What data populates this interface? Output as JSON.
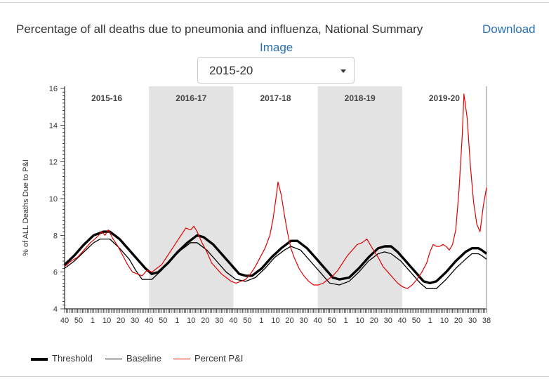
{
  "header": {
    "title": "Percentage of all deaths due to pneumonia and influenza, National Summary",
    "download_label": "Download",
    "download_label_2": "Image"
  },
  "season_select": {
    "value": "2015-20"
  },
  "chart_data": {
    "type": "line",
    "title": "",
    "xlabel": "",
    "ylabel": "% of ALL Deaths Due to P&I",
    "ylim": [
      4,
      16
    ],
    "yticks": [
      4,
      6,
      8,
      10,
      12,
      14,
      16
    ],
    "x_start_week": 40,
    "x_end_week": 38,
    "x_total_weeks": 261,
    "x_tick_labels": [
      "40",
      "50",
      "1",
      "10",
      "20",
      "30",
      "40",
      "50",
      "1",
      "10",
      "20",
      "30",
      "40",
      "50",
      "1",
      "10",
      "20",
      "30",
      "40",
      "50",
      "1",
      "10",
      "20",
      "30",
      "40",
      "50",
      "1",
      "10",
      "20",
      "30",
      "38"
    ],
    "seasons": [
      {
        "label": "2015-16",
        "shaded": false
      },
      {
        "label": "2016-17",
        "shaded": true
      },
      {
        "label": "2017-18",
        "shaded": false
      },
      {
        "label": "2018-19",
        "shaded": true
      },
      {
        "label": "2019-20",
        "shaded": false
      }
    ],
    "legend_position": "bottom-left",
    "series": [
      {
        "name": "Threshold",
        "color": "#000000",
        "points": [
          [
            0,
            6.4
          ],
          [
            6,
            6.9
          ],
          [
            12,
            7.5
          ],
          [
            18,
            8.0
          ],
          [
            24,
            8.2
          ],
          [
            28,
            8.2
          ],
          [
            34,
            7.8
          ],
          [
            40,
            7.2
          ],
          [
            46,
            6.6
          ],
          [
            50,
            6.2
          ],
          [
            54,
            5.9
          ],
          [
            58,
            6.0
          ],
          [
            64,
            6.5
          ],
          [
            70,
            7.1
          ],
          [
            76,
            7.6
          ],
          [
            82,
            8.0
          ],
          [
            86,
            7.9
          ],
          [
            92,
            7.5
          ],
          [
            98,
            6.9
          ],
          [
            104,
            6.3
          ],
          [
            108,
            5.9
          ],
          [
            112,
            5.8
          ],
          [
            116,
            5.8
          ],
          [
            122,
            6.2
          ],
          [
            128,
            6.8
          ],
          [
            134,
            7.3
          ],
          [
            140,
            7.7
          ],
          [
            144,
            7.7
          ],
          [
            150,
            7.3
          ],
          [
            156,
            6.7
          ],
          [
            162,
            6.1
          ],
          [
            166,
            5.7
          ],
          [
            170,
            5.6
          ],
          [
            176,
            5.7
          ],
          [
            182,
            6.2
          ],
          [
            188,
            6.8
          ],
          [
            194,
            7.3
          ],
          [
            198,
            7.4
          ],
          [
            202,
            7.4
          ],
          [
            206,
            7.1
          ],
          [
            212,
            6.5
          ],
          [
            218,
            5.9
          ],
          [
            222,
            5.5
          ],
          [
            226,
            5.4
          ],
          [
            230,
            5.5
          ],
          [
            236,
            6.0
          ],
          [
            242,
            6.6
          ],
          [
            248,
            7.1
          ],
          [
            252,
            7.3
          ],
          [
            256,
            7.3
          ],
          [
            258,
            7.2
          ],
          [
            261,
            7.0
          ]
        ]
      },
      {
        "name": "Baseline",
        "color": "#000000",
        "points": [
          [
            0,
            6.2
          ],
          [
            6,
            6.6
          ],
          [
            12,
            7.1
          ],
          [
            18,
            7.6
          ],
          [
            22,
            7.8
          ],
          [
            28,
            7.8
          ],
          [
            34,
            7.3
          ],
          [
            40,
            6.7
          ],
          [
            44,
            6.1
          ],
          [
            48,
            5.6
          ],
          [
            54,
            5.6
          ],
          [
            60,
            6.1
          ],
          [
            66,
            6.7
          ],
          [
            72,
            7.2
          ],
          [
            78,
            7.6
          ],
          [
            82,
            7.6
          ],
          [
            88,
            7.2
          ],
          [
            94,
            6.6
          ],
          [
            100,
            6.0
          ],
          [
            106,
            5.6
          ],
          [
            112,
            5.5
          ],
          [
            118,
            5.7
          ],
          [
            124,
            6.2
          ],
          [
            130,
            6.8
          ],
          [
            136,
            7.2
          ],
          [
            140,
            7.4
          ],
          [
            146,
            7.2
          ],
          [
            152,
            6.6
          ],
          [
            158,
            6.0
          ],
          [
            164,
            5.4
          ],
          [
            170,
            5.3
          ],
          [
            176,
            5.5
          ],
          [
            182,
            6.0
          ],
          [
            188,
            6.6
          ],
          [
            194,
            7.0
          ],
          [
            198,
            7.1
          ],
          [
            202,
            7.0
          ],
          [
            208,
            6.6
          ],
          [
            214,
            6.0
          ],
          [
            220,
            5.4
          ],
          [
            224,
            5.1
          ],
          [
            230,
            5.1
          ],
          [
            236,
            5.6
          ],
          [
            242,
            6.2
          ],
          [
            248,
            6.7
          ],
          [
            252,
            7.0
          ],
          [
            256,
            7.0
          ],
          [
            258,
            6.9
          ],
          [
            261,
            6.7
          ]
        ]
      },
      {
        "name": "Percent P&I",
        "color": "#e00000",
        "points": [
          [
            0,
            6.3
          ],
          [
            4,
            6.6
          ],
          [
            8,
            6.8
          ],
          [
            12,
            7.2
          ],
          [
            16,
            7.6
          ],
          [
            20,
            7.9
          ],
          [
            23,
            8.2
          ],
          [
            25,
            8.0
          ],
          [
            27,
            8.3
          ],
          [
            30,
            7.8
          ],
          [
            33,
            7.4
          ],
          [
            36,
            6.9
          ],
          [
            39,
            6.4
          ],
          [
            42,
            6.0
          ],
          [
            45,
            5.9
          ],
          [
            48,
            5.8
          ],
          [
            51,
            6.1
          ],
          [
            54,
            6.0
          ],
          [
            57,
            6.2
          ],
          [
            60,
            6.4
          ],
          [
            63,
            6.8
          ],
          [
            66,
            7.2
          ],
          [
            69,
            7.6
          ],
          [
            72,
            8.0
          ],
          [
            75,
            8.4
          ],
          [
            78,
            8.3
          ],
          [
            80,
            8.5
          ],
          [
            82,
            8.2
          ],
          [
            85,
            7.6
          ],
          [
            88,
            7.1
          ],
          [
            91,
            6.5
          ],
          [
            94,
            6.2
          ],
          [
            97,
            5.9
          ],
          [
            100,
            5.7
          ],
          [
            103,
            5.5
          ],
          [
            106,
            5.4
          ],
          [
            109,
            5.5
          ],
          [
            112,
            5.6
          ],
          [
            115,
            5.9
          ],
          [
            118,
            6.3
          ],
          [
            121,
            6.8
          ],
          [
            124,
            7.3
          ],
          [
            127,
            8.0
          ],
          [
            129,
            8.9
          ],
          [
            131,
            10.2
          ],
          [
            132,
            10.9
          ],
          [
            134,
            10.2
          ],
          [
            136,
            9.1
          ],
          [
            138,
            8.1
          ],
          [
            140,
            7.3
          ],
          [
            142,
            6.8
          ],
          [
            145,
            6.2
          ],
          [
            148,
            5.8
          ],
          [
            151,
            5.5
          ],
          [
            154,
            5.3
          ],
          [
            157,
            5.3
          ],
          [
            160,
            5.4
          ],
          [
            163,
            5.6
          ],
          [
            166,
            5.8
          ],
          [
            169,
            6.1
          ],
          [
            172,
            6.5
          ],
          [
            175,
            6.9
          ],
          [
            178,
            7.2
          ],
          [
            181,
            7.5
          ],
          [
            184,
            7.6
          ],
          [
            187,
            7.8
          ],
          [
            189,
            7.5
          ],
          [
            191,
            7.2
          ],
          [
            194,
            6.8
          ],
          [
            197,
            6.3
          ],
          [
            200,
            6.0
          ],
          [
            203,
            5.7
          ],
          [
            206,
            5.4
          ],
          [
            209,
            5.2
          ],
          [
            212,
            5.1
          ],
          [
            215,
            5.3
          ],
          [
            218,
            5.6
          ],
          [
            221,
            6.0
          ],
          [
            224,
            6.5
          ],
          [
            226,
            7.1
          ],
          [
            228,
            7.5
          ],
          [
            230,
            7.4
          ],
          [
            232,
            7.4
          ],
          [
            234,
            7.5
          ],
          [
            236,
            7.4
          ],
          [
            238,
            7.2
          ],
          [
            240,
            7.5
          ],
          [
            242,
            8.3
          ],
          [
            244,
            10.5
          ],
          [
            246,
            13.5
          ],
          [
            247,
            15.7
          ],
          [
            249,
            14.4
          ],
          [
            251,
            11.8
          ],
          [
            253,
            9.8
          ],
          [
            255,
            8.6
          ],
          [
            257,
            8.2
          ],
          [
            259,
            9.6
          ],
          [
            261,
            10.6
          ]
        ]
      }
    ]
  },
  "legend": {
    "threshold": "Threshold",
    "baseline": "Baseline",
    "percent": "Percent P&I"
  }
}
